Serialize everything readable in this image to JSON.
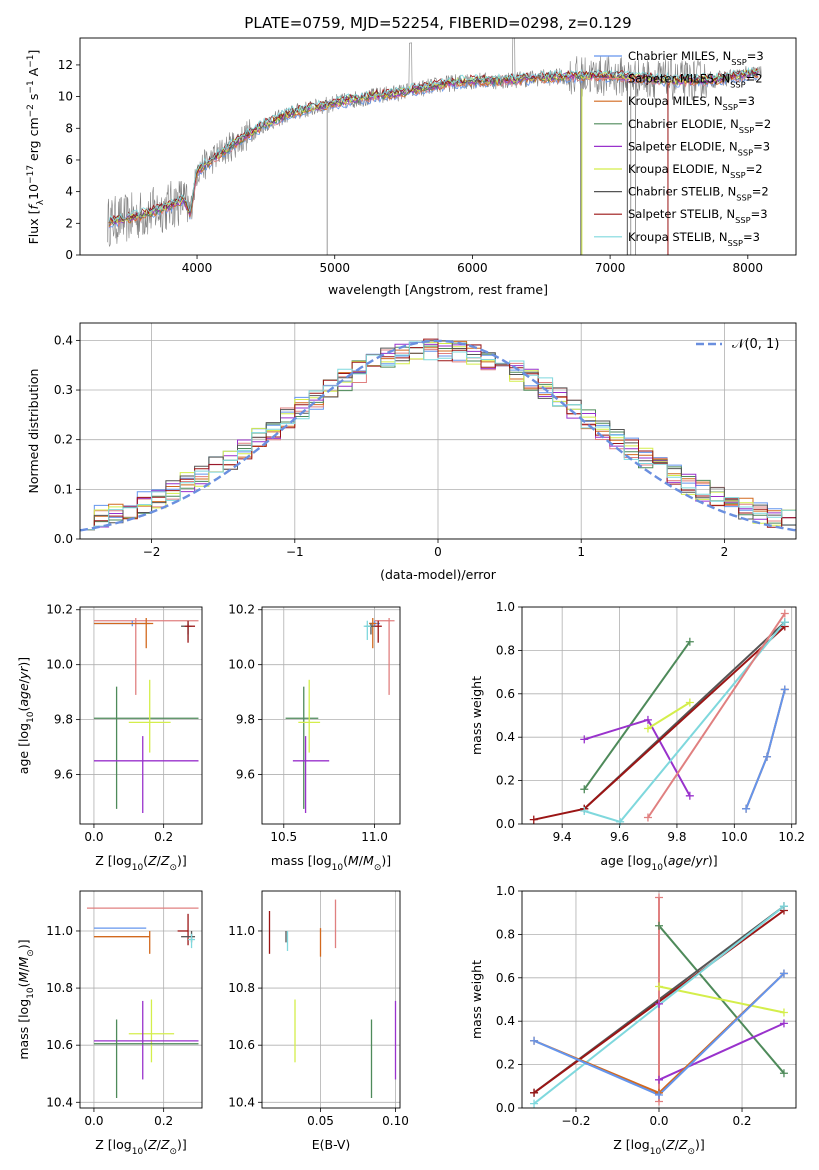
{
  "figure": {
    "title": "PLATE=0759, MJD=52254, FIBERID=0298, z=0.129"
  },
  "colors": {
    "Chabrier MILES": "#6495ED",
    "Salpeter MILES": "#E08080",
    "Kroupa MILES": "#D2691E",
    "Chabrier ELODIE": "#4E8A5A",
    "Salpeter ELODIE": "#9932CC",
    "Kroupa ELODIE": "#D4EE4B",
    "Chabrier STELIB": "#555555",
    "Salpeter STELIB": "#9B1515",
    "Kroupa STELIB": "#7FD8DD",
    "gauss": "#6A8FDF",
    "data": "#808080"
  },
  "chart_data": [
    {
      "id": "spectrum",
      "type": "line",
      "title": "PLATE=0759, MJD=52254, FIBERID=0298, z=0.129",
      "xlabel": "wavelength [Angstrom, rest frame]",
      "ylabel": "Flux [f_λ 10^-17 erg cm^-2 s^-1 A^-1]",
      "xlim": [
        3150,
        8350
      ],
      "ylim": [
        0,
        13.7
      ],
      "xticks": [
        4000,
        5000,
        6000,
        7000,
        8000
      ],
      "yticks": [
        0,
        2,
        4,
        6,
        8,
        10,
        12
      ],
      "legend_position": "top-right",
      "legend": [
        {
          "name": "Chabrier MILES",
          "label": "Chabrier MILES, N",
          "sub": "SSP",
          "tail": "=3"
        },
        {
          "name": "Salpeter MILES",
          "label": "Salpeter MILES, N",
          "sub": "SSP",
          "tail": "=2"
        },
        {
          "name": "Kroupa MILES",
          "label": "Kroupa MILES, N",
          "sub": "SSP",
          "tail": "=3"
        },
        {
          "name": "Chabrier ELODIE",
          "label": "Chabrier ELODIE, N",
          "sub": "SSP",
          "tail": "=2"
        },
        {
          "name": "Salpeter ELODIE",
          "label": "Salpeter ELODIE, N",
          "sub": "SSP",
          "tail": "=3"
        },
        {
          "name": "Kroupa ELODIE",
          "label": "Kroupa ELODIE, N",
          "sub": "SSP",
          "tail": "=2"
        },
        {
          "name": "Chabrier STELIB",
          "label": "Chabrier STELIB, N",
          "sub": "SSP",
          "tail": "=2"
        },
        {
          "name": "Salpeter STELIB",
          "label": "Salpeter STELIB, N",
          "sub": "SSP",
          "tail": "=3"
        },
        {
          "name": "Kroupa STELIB",
          "label": "Kroupa STELIB, N",
          "sub": "SSP",
          "tail": "=3"
        }
      ],
      "continuum": {
        "x": [
          3350,
          3500,
          3700,
          3800,
          3900,
          3950,
          4000,
          4100,
          4300,
          4500,
          4700,
          5000,
          5200,
          5500,
          5800,
          6000,
          6200,
          6500,
          6800,
          7000,
          7200,
          7500,
          7800,
          8000,
          8100
        ],
        "y": [
          2.1,
          2.3,
          2.8,
          3.1,
          3.5,
          2.6,
          5.3,
          6.0,
          7.2,
          8.3,
          9.0,
          9.6,
          9.9,
          10.3,
          10.8,
          11.0,
          11.0,
          11.2,
          11.3,
          11.3,
          11.2,
          11.0,
          11.1,
          11.4,
          11.5
        ]
      }
    },
    {
      "id": "residuals",
      "type": "line",
      "xlabel": "(data-model)/error",
      "ylabel": "Normed distribution",
      "xlim": [
        -2.5,
        2.5
      ],
      "ylim": [
        0,
        0.435
      ],
      "xticks": [
        -2,
        -1,
        0,
        1,
        2
      ],
      "yticks": [
        0.0,
        0.1,
        0.2,
        0.3,
        0.4
      ],
      "legend_label": "𝒩(0, 1)",
      "legend_position": "top-right",
      "gauss": {
        "mean": 0,
        "sigma": 1
      }
    },
    {
      "id": "age-vs-Z",
      "type": "scatter",
      "xlabel": "Z [log10(Z/Z☉)]",
      "ylabel": "age  [log10(age/yr)]",
      "xlim": [
        -0.04,
        0.31
      ],
      "ylim": [
        9.42,
        10.21
      ],
      "xticks": [
        0.0,
        0.2
      ],
      "yticks": [
        9.6,
        9.8,
        10.0,
        10.2
      ],
      "points": [
        {
          "name": "Salpeter MILES",
          "x": 0.12,
          "y": 10.16,
          "xerr": [
            0.12,
            0.18
          ],
          "yerr": [
            0.27,
            0.01
          ]
        },
        {
          "name": "Chabrier MILES",
          "x": 0.11,
          "y": 10.15,
          "xerr": [
            0.11,
            0.05
          ],
          "yerr": [
            0.01,
            0.01
          ]
        },
        {
          "name": "Kroupa MILES",
          "x": 0.15,
          "y": 10.15,
          "xerr": [
            0.15,
            0.02
          ],
          "yerr": [
            0.09,
            0.02
          ]
        },
        {
          "name": "Chabrier STELIB",
          "x": 0.27,
          "y": 10.14,
          "xerr": [
            0.02,
            0.01
          ],
          "yerr": [
            0.03,
            0.01
          ]
        },
        {
          "name": "Kroupa STELIB",
          "x": 0.27,
          "y": 10.14,
          "xerr": [
            0.01,
            0.01
          ],
          "yerr": [
            0.05,
            0.02
          ]
        },
        {
          "name": "Salpeter STELIB",
          "x": 0.27,
          "y": 10.14,
          "xerr": [
            0.01,
            0.02
          ],
          "yerr": [
            0.06,
            0.02
          ]
        },
        {
          "name": "Chabrier ELODIE",
          "x": 0.065,
          "y": 9.805,
          "xerr": [
            0.065,
            0.235
          ],
          "yerr": [
            0.33,
            0.115
          ]
        },
        {
          "name": "Kroupa ELODIE",
          "x": 0.16,
          "y": 9.79,
          "xerr": [
            0.06,
            0.06
          ],
          "yerr": [
            0.11,
            0.155
          ]
        },
        {
          "name": "Salpeter ELODIE",
          "x": 0.14,
          "y": 9.65,
          "xerr": [
            0.14,
            0.16
          ],
          "yerr": [
            0.19,
            0.09
          ]
        }
      ]
    },
    {
      "id": "age-vs-mass",
      "type": "scatter",
      "xlabel": "mass [log10(M/M☉)]",
      "ylabel": "",
      "xlim": [
        10.38,
        11.14
      ],
      "ylim": [
        9.42,
        10.21
      ],
      "xticks": [
        10.5,
        11.0
      ],
      "yticks": [
        9.6,
        9.8,
        10.0,
        10.2
      ],
      "points": [
        {
          "name": "Salpeter MILES",
          "x": 11.08,
          "y": 10.16,
          "xerr": [
            0.08,
            0.03
          ],
          "yerr": [
            0.27,
            0.01
          ]
        },
        {
          "name": "Chabrier MILES",
          "x": 11.0,
          "y": 10.15,
          "xerr": [
            0.03,
            0.03
          ],
          "yerr": [
            0.01,
            0.01
          ]
        },
        {
          "name": "Kroupa MILES",
          "x": 10.99,
          "y": 10.15,
          "xerr": [
            0.02,
            0.02
          ],
          "yerr": [
            0.09,
            0.02
          ]
        },
        {
          "name": "Chabrier STELIB",
          "x": 10.98,
          "y": 10.14,
          "xerr": [
            0.03,
            0.02
          ],
          "yerr": [
            0.03,
            0.01
          ]
        },
        {
          "name": "Kroupa STELIB",
          "x": 10.96,
          "y": 10.14,
          "xerr": [
            0.02,
            0.02
          ],
          "yerr": [
            0.05,
            0.02
          ]
        },
        {
          "name": "Salpeter STELIB",
          "x": 11.02,
          "y": 10.14,
          "xerr": [
            0.02,
            0.02
          ],
          "yerr": [
            0.06,
            0.02
          ]
        },
        {
          "name": "Chabrier ELODIE",
          "x": 10.61,
          "y": 9.805,
          "xerr": [
            0.1,
            0.08
          ],
          "yerr": [
            0.33,
            0.115
          ]
        },
        {
          "name": "Kroupa ELODIE",
          "x": 10.64,
          "y": 9.79,
          "xerr": [
            0.06,
            0.06
          ],
          "yerr": [
            0.11,
            0.155
          ]
        },
        {
          "name": "Salpeter ELODIE",
          "x": 10.62,
          "y": 9.65,
          "xerr": [
            0.07,
            0.13
          ],
          "yerr": [
            0.19,
            0.09
          ]
        }
      ]
    },
    {
      "id": "weight-vs-age",
      "type": "line",
      "xlabel": "age  [log10(age/yr)]",
      "ylabel": "mass weight",
      "xlim": [
        9.26,
        10.215
      ],
      "ylim": [
        0,
        1.0
      ],
      "xticks": [
        9.4,
        9.6,
        9.8,
        10.0,
        10.2
      ],
      "yticks": [
        0.0,
        0.2,
        0.4,
        0.6,
        0.8,
        1.0
      ],
      "series": [
        {
          "name": "Chabrier ELODIE",
          "x": [
            9.477,
            9.845
          ],
          "y": [
            0.16,
            0.84
          ]
        },
        {
          "name": "Salpeter ELODIE",
          "x": [
            9.477,
            9.699,
            9.845
          ],
          "y": [
            0.39,
            0.48,
            0.13
          ]
        },
        {
          "name": "Kroupa ELODIE",
          "x": [
            9.699,
            9.845
          ],
          "y": [
            0.44,
            0.56
          ]
        },
        {
          "name": "Chabrier STELIB",
          "x": [
            9.477,
            10.176
          ],
          "y": [
            0.07,
            0.93
          ]
        },
        {
          "name": "Salpeter STELIB",
          "x": [
            9.301,
            9.477,
            10.176
          ],
          "y": [
            0.02,
            0.07,
            0.91
          ]
        },
        {
          "name": "Kroupa STELIB",
          "x": [
            9.477,
            9.602,
            10.176
          ],
          "y": [
            0.06,
            0.01,
            0.93
          ]
        },
        {
          "name": "Salpeter MILES",
          "x": [
            9.699,
            10.176
          ],
          "y": [
            0.03,
            0.97
          ]
        },
        {
          "name": "Kroupa MILES",
          "x": [
            10.041,
            10.114,
            10.176
          ],
          "y": [
            0.07,
            0.31,
            0.62
          ]
        },
        {
          "name": "Chabrier MILES",
          "x": [
            10.041,
            10.114,
            10.176
          ],
          "y": [
            0.07,
            0.31,
            0.62
          ]
        }
      ]
    },
    {
      "id": "mass-vs-Z",
      "type": "scatter",
      "xlabel": "Z [log10(Z/Z☉)]",
      "ylabel": "mass [log10(M/M☉)]",
      "xlim": [
        -0.04,
        0.31
      ],
      "ylim": [
        10.38,
        11.14
      ],
      "xticks": [
        0.0,
        0.2
      ],
      "yticks": [
        10.4,
        10.6,
        10.8,
        11.0
      ],
      "points": [
        {
          "name": "Salpeter MILES",
          "x": 0.0,
          "y": 11.08,
          "xerr": [
            0.02,
            0.3
          ],
          "yerr": [
            0.0,
            0.0
          ]
        },
        {
          "name": "Chabrier MILES",
          "x": 0.1,
          "y": 11.01,
          "xerr": [
            0.1,
            0.05
          ],
          "yerr": [
            0.0,
            0.0
          ]
        },
        {
          "name": "Kroupa MILES",
          "x": 0.16,
          "y": 10.98,
          "xerr": [
            0.16,
            0.0
          ],
          "yerr": [
            0.06,
            0.02
          ]
        },
        {
          "name": "Salpeter STELIB",
          "x": 0.27,
          "y": 11.0,
          "xerr": [
            0.03,
            0.0
          ],
          "yerr": [
            0.05,
            0.06
          ]
        },
        {
          "name": "Chabrier STELIB",
          "x": 0.28,
          "y": 10.98,
          "xerr": [
            0.03,
            0.01
          ],
          "yerr": [
            0.02,
            0.02
          ]
        },
        {
          "name": "Kroupa STELIB",
          "x": 0.28,
          "y": 10.97,
          "xerr": [
            0.01,
            0.01
          ],
          "yerr": [
            0.03,
            0.02
          ]
        },
        {
          "name": "Kroupa ELODIE",
          "x": 0.165,
          "y": 10.64,
          "xerr": [
            0.065,
            0.065
          ],
          "yerr": [
            0.1,
            0.12
          ]
        },
        {
          "name": "Salpeter ELODIE",
          "x": 0.14,
          "y": 10.615,
          "xerr": [
            0.14,
            0.16
          ],
          "yerr": [
            0.135,
            0.14
          ]
        },
        {
          "name": "Chabrier ELODIE",
          "x": 0.065,
          "y": 10.605,
          "xerr": [
            0.065,
            0.235
          ],
          "yerr": [
            0.19,
            0.085
          ]
        }
      ]
    },
    {
      "id": "mass-vs-EBV",
      "type": "scatter",
      "xlabel": "E(B-V)",
      "ylabel": "",
      "xlim": [
        0.011,
        0.103
      ],
      "ylim": [
        10.38,
        11.14
      ],
      "xticks": [
        0.05,
        0.1
      ],
      "yticks": [
        10.4,
        10.6,
        10.8,
        11.0
      ],
      "points": [
        {
          "name": "Salpeter STELIB",
          "x": 0.016,
          "y": 11.0,
          "xerr": [
            0,
            0
          ],
          "yerr": [
            0.08,
            0.07
          ]
        },
        {
          "name": "Chabrier STELIB",
          "x": 0.027,
          "y": 10.98,
          "xerr": [
            0,
            0
          ],
          "yerr": [
            0.02,
            0.02
          ]
        },
        {
          "name": "Kroupa STELIB",
          "x": 0.028,
          "y": 10.97,
          "xerr": [
            0,
            0
          ],
          "yerr": [
            0.04,
            0.03
          ]
        },
        {
          "name": "Kroupa MILES",
          "x": 0.05,
          "y": 10.97,
          "xerr": [
            0,
            0
          ],
          "yerr": [
            0.06,
            0.04
          ]
        },
        {
          "name": "Salpeter MILES",
          "x": 0.06,
          "y": 11.03,
          "xerr": [
            0,
            0
          ],
          "yerr": [
            0.09,
            0.08
          ]
        },
        {
          "name": "Kroupa ELODIE",
          "x": 0.033,
          "y": 10.64,
          "xerr": [
            0,
            0
          ],
          "yerr": [
            0.1,
            0.12
          ]
        },
        {
          "name": "Chabrier ELODIE",
          "x": 0.084,
          "y": 10.605,
          "xerr": [
            0,
            0
          ],
          "yerr": [
            0.19,
            0.085
          ]
        },
        {
          "name": "Salpeter ELODIE",
          "x": 0.1,
          "y": 10.615,
          "xerr": [
            0,
            0
          ],
          "yerr": [
            0.135,
            0.14
          ]
        }
      ]
    },
    {
      "id": "weight-vs-Z",
      "type": "line",
      "xlabel": "Z [log10(Z/Z☉)]",
      "ylabel": "mass weight",
      "xlim": [
        -0.33,
        0.33
      ],
      "ylim": [
        0,
        1.0
      ],
      "xticks": [
        -0.2,
        0.0,
        0.2
      ],
      "yticks": [
        0.0,
        0.2,
        0.4,
        0.6,
        0.8,
        1.0
      ],
      "series": [
        {
          "name": "Chabrier ELODIE",
          "x": [
            0.0,
            0.301
          ],
          "y": [
            0.84,
            0.16
          ]
        },
        {
          "name": "Salpeter ELODIE",
          "x": [
            0.0,
            0.0,
            0.301
          ],
          "y": [
            0.48,
            0.13,
            0.39
          ]
        },
        {
          "name": "Kroupa ELODIE",
          "x": [
            0.0,
            0.301
          ],
          "y": [
            0.56,
            0.44
          ]
        },
        {
          "name": "Chabrier STELIB",
          "x": [
            -0.301,
            0.301
          ],
          "y": [
            0.07,
            0.93
          ]
        },
        {
          "name": "Salpeter STELIB",
          "x": [
            -0.301,
            0.301
          ],
          "y": [
            0.07,
            0.91
          ]
        },
        {
          "name": "Kroupa STELIB",
          "x": [
            -0.301,
            0.301
          ],
          "y": [
            0.02,
            0.93
          ]
        },
        {
          "name": "Salpeter MILES",
          "x": [
            0.0,
            0.0
          ],
          "y": [
            0.03,
            0.97
          ]
        },
        {
          "name": "Kroupa MILES",
          "x": [
            -0.301,
            0.0,
            0.301
          ],
          "y": [
            0.31,
            0.07,
            0.62
          ]
        },
        {
          "name": "Chabrier MILES",
          "x": [
            -0.301,
            0.0,
            0.301
          ],
          "y": [
            0.31,
            0.06,
            0.62
          ]
        }
      ]
    }
  ]
}
